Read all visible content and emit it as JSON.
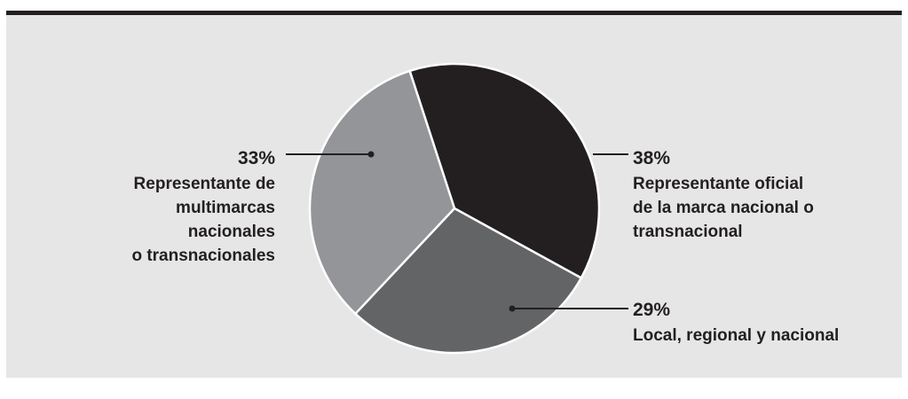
{
  "chart_data": {
    "type": "pie",
    "slices": [
      {
        "label": "Representante oficial de la marca nacional o transnacional",
        "value": 38,
        "value_text": "38%",
        "color": "#231f20",
        "label_lines": [
          "Representante oficial",
          "de la marca nacional o",
          "transnacional"
        ]
      },
      {
        "label": "Local, regional y nacional",
        "value": 29,
        "value_text": "29%",
        "color": "#636466",
        "label_lines": [
          "Local, regional y nacional"
        ]
      },
      {
        "label": "Representante de multimarcas nacionales o transnacionales",
        "value": 33,
        "value_text": "33%",
        "color": "#939598",
        "label_lines": [
          "Representante de",
          "multimarcas",
          "nacionales",
          "o transnacionales"
        ]
      }
    ]
  }
}
